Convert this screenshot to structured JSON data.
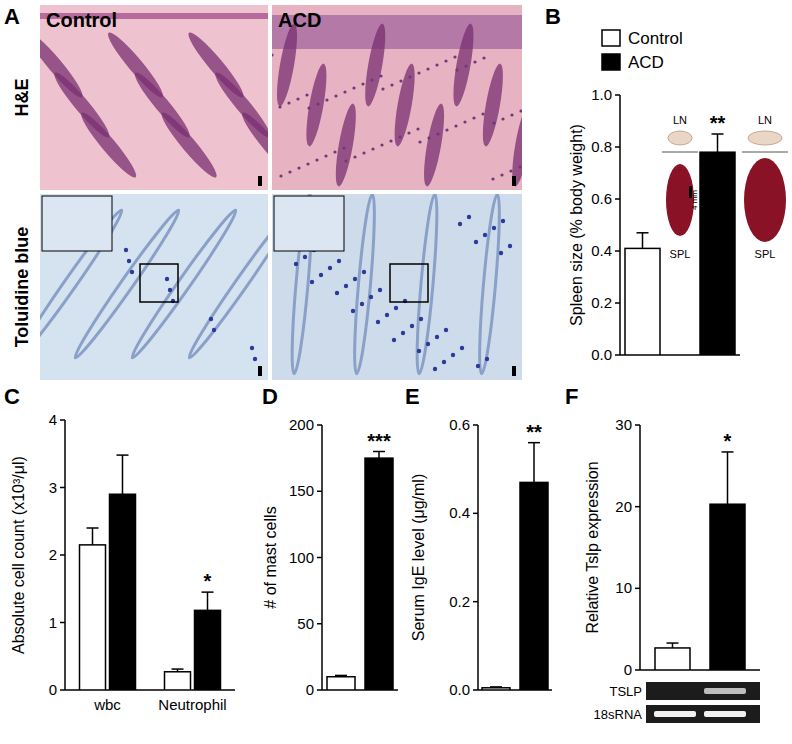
{
  "figure": {
    "panel": "A",
    "columns": [
      "Control",
      "ACD"
    ],
    "rows": [
      "H&E",
      "Toluidine blue"
    ]
  },
  "chart_data": [
    {
      "type": "bar",
      "panel": "B",
      "y_label": "Spleen size (% body weight)",
      "categories": [
        null
      ],
      "series": [
        {
          "name": "Control",
          "color": "#ffffff",
          "values": [
            0.41
          ],
          "errors": [
            0.06
          ]
        },
        {
          "name": "ACD",
          "color": "#000000",
          "values": [
            0.78
          ],
          "errors": [
            0.07
          ],
          "significance": [
            "**"
          ]
        }
      ],
      "ylim": [
        0,
        1
      ],
      "yticks": [
        {
          "value": 0,
          "label": "0.0"
        },
        0.2,
        0.4,
        0.6,
        0.8,
        {
          "value": 1,
          "label": "1.0"
        }
      ],
      "legend": "top-left",
      "insets": [
        {
          "top": "LN",
          "bottom": "SPL",
          "scale": "4 mm"
        },
        {
          "top": "LN",
          "bottom": "SPL"
        }
      ]
    },
    {
      "type": "bar",
      "panel": "C",
      "y_label": "Absolute cell count (x10³/μl)",
      "categories": [
        "wbc",
        "Neutrophil"
      ],
      "series": [
        {
          "color": "#ffffff",
          "values": [
            2.15,
            0.27
          ],
          "errors": [
            0.25,
            0.04
          ]
        },
        {
          "color": "#000000",
          "values": [
            2.9,
            1.18
          ],
          "errors": [
            0.58,
            0.27
          ],
          "significance": [
            null,
            "*"
          ]
        }
      ],
      "ylim": [
        0,
        4
      ],
      "yticks": [
        0,
        1,
        2,
        3,
        4
      ]
    },
    {
      "type": "bar",
      "panel": "D",
      "y_label": "# of mast cells",
      "categories": [
        null
      ],
      "series": [
        {
          "color": "#ffffff",
          "values": [
            10
          ],
          "errors": [
            1
          ]
        },
        {
          "color": "#000000",
          "values": [
            175
          ],
          "errors": [
            5
          ],
          "significance": [
            "***"
          ]
        }
      ],
      "ylim": [
        0,
        200
      ],
      "yticks": [
        0,
        50,
        100,
        150,
        200
      ]
    },
    {
      "type": "bar",
      "panel": "E",
      "y_label": "Serum IgE level (μg/ml)",
      "categories": [
        null
      ],
      "series": [
        {
          "color": "#ffffff",
          "values": [
            0.005
          ],
          "errors": [
            0.002
          ]
        },
        {
          "color": "#000000",
          "values": [
            0.47
          ],
          "errors": [
            0.09
          ],
          "significance": [
            "**"
          ]
        }
      ],
      "ylim": [
        0,
        0.6
      ],
      "yticks": [
        {
          "value": 0,
          "label": "0.0"
        },
        0.2,
        0.4,
        0.6
      ]
    },
    {
      "type": "bar",
      "panel": "F",
      "y_label": "Relative Tslp expression",
      "categories": [
        null
      ],
      "series": [
        {
          "color": "#ffffff",
          "values": [
            2.7
          ],
          "errors": [
            0.6
          ]
        },
        {
          "color": "#000000",
          "values": [
            20.3
          ],
          "errors": [
            6.4
          ],
          "significance": [
            "*"
          ]
        }
      ],
      "ylim": [
        0,
        30
      ],
      "yticks": [
        0,
        10,
        20,
        30
      ],
      "gel_labels": [
        "TSLP",
        "18sRNA"
      ]
    }
  ]
}
